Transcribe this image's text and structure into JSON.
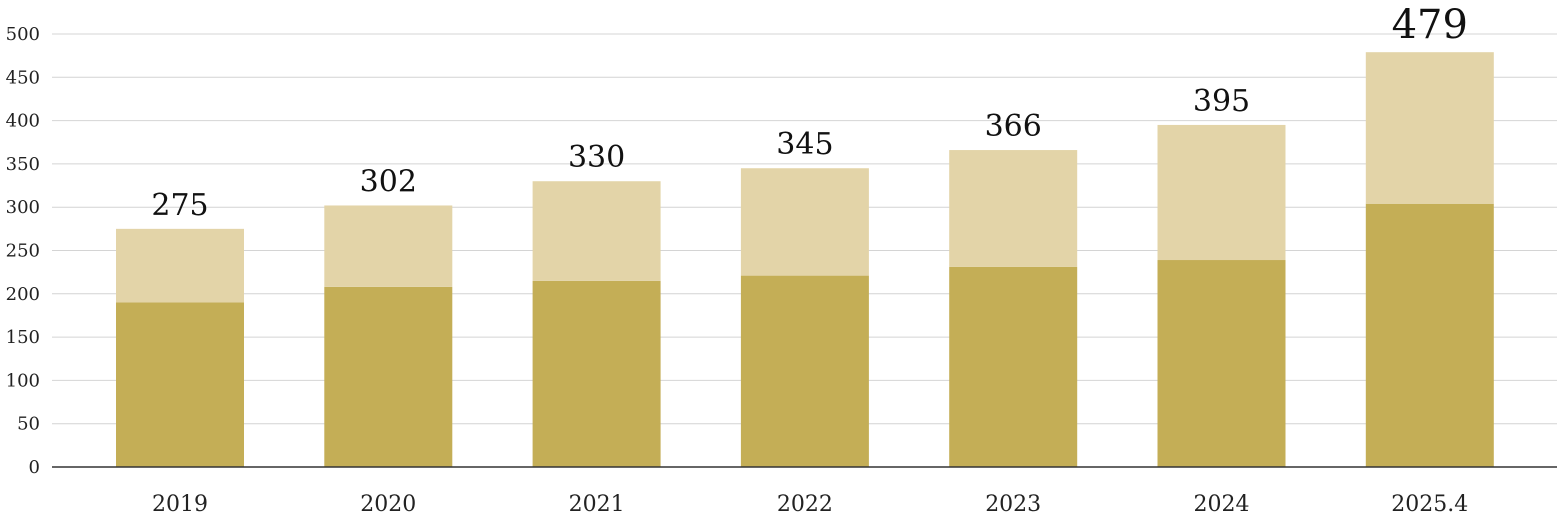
{
  "chart_data": {
    "type": "bar",
    "stacked": true,
    "categories": [
      "2019",
      "2020",
      "2021",
      "2022",
      "2023",
      "2024",
      "2025.4"
    ],
    "series": [
      {
        "values": [
          190,
          208,
          215,
          221,
          231,
          239,
          304
        ],
        "color": "#c4ae56"
      },
      {
        "values": [
          85,
          94,
          115,
          124,
          135,
          156,
          175
        ],
        "color": "#e3d4a8"
      }
    ],
    "totals": [
      275,
      302,
      330,
      345,
      366,
      395,
      479
    ],
    "yticks": [
      0,
      50,
      100,
      150,
      200,
      250,
      300,
      350,
      400,
      450,
      500
    ],
    "ylim": [
      0,
      500
    ],
    "grid": true,
    "legend": "none"
  }
}
